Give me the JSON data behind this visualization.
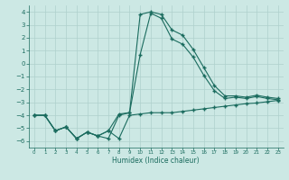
{
  "xlabel": "Humidex (Indice chaleur)",
  "x": [
    0,
    1,
    2,
    3,
    4,
    5,
    6,
    7,
    8,
    9,
    10,
    11,
    12,
    13,
    14,
    15,
    16,
    17,
    18,
    19,
    20,
    21,
    22,
    23
  ],
  "line1": [
    -4.0,
    -4.0,
    -5.2,
    -4.9,
    -5.8,
    -5.3,
    -5.6,
    -5.2,
    -5.8,
    -4.0,
    -3.9,
    -3.8,
    -3.8,
    -3.8,
    -3.7,
    -3.6,
    -3.5,
    -3.4,
    -3.3,
    -3.2,
    -3.1,
    -3.05,
    -2.95,
    -2.85
  ],
  "line2": [
    -4.0,
    -4.0,
    -5.2,
    -4.9,
    -5.8,
    -5.3,
    -5.6,
    -5.2,
    -3.9,
    -3.8,
    3.8,
    4.0,
    3.8,
    2.6,
    2.2,
    1.1,
    -0.3,
    -1.7,
    -2.5,
    -2.5,
    -2.6,
    -2.45,
    -2.6,
    -2.7
  ],
  "line3": [
    -4.0,
    -4.0,
    -5.2,
    -4.9,
    -5.8,
    -5.3,
    -5.6,
    -5.8,
    -4.0,
    -3.8,
    0.7,
    3.9,
    3.5,
    1.9,
    1.5,
    0.5,
    -0.9,
    -2.1,
    -2.7,
    -2.6,
    -2.7,
    -2.55,
    -2.7,
    -2.8
  ],
  "ylim": [
    -6.5,
    4.5
  ],
  "xlim": [
    -0.5,
    23.5
  ],
  "yticks": [
    -6,
    -5,
    -4,
    -3,
    -2,
    -1,
    0,
    1,
    2,
    3,
    4
  ],
  "xticks": [
    0,
    1,
    2,
    3,
    4,
    5,
    6,
    7,
    8,
    9,
    10,
    11,
    12,
    13,
    14,
    15,
    16,
    17,
    18,
    19,
    20,
    21,
    22,
    23
  ],
  "line_color": "#1a6b5e",
  "bg_color": "#cce8e4",
  "grid_color": "#aed0cc",
  "marker": "+",
  "markersize": 3.0,
  "linewidth": 0.8
}
